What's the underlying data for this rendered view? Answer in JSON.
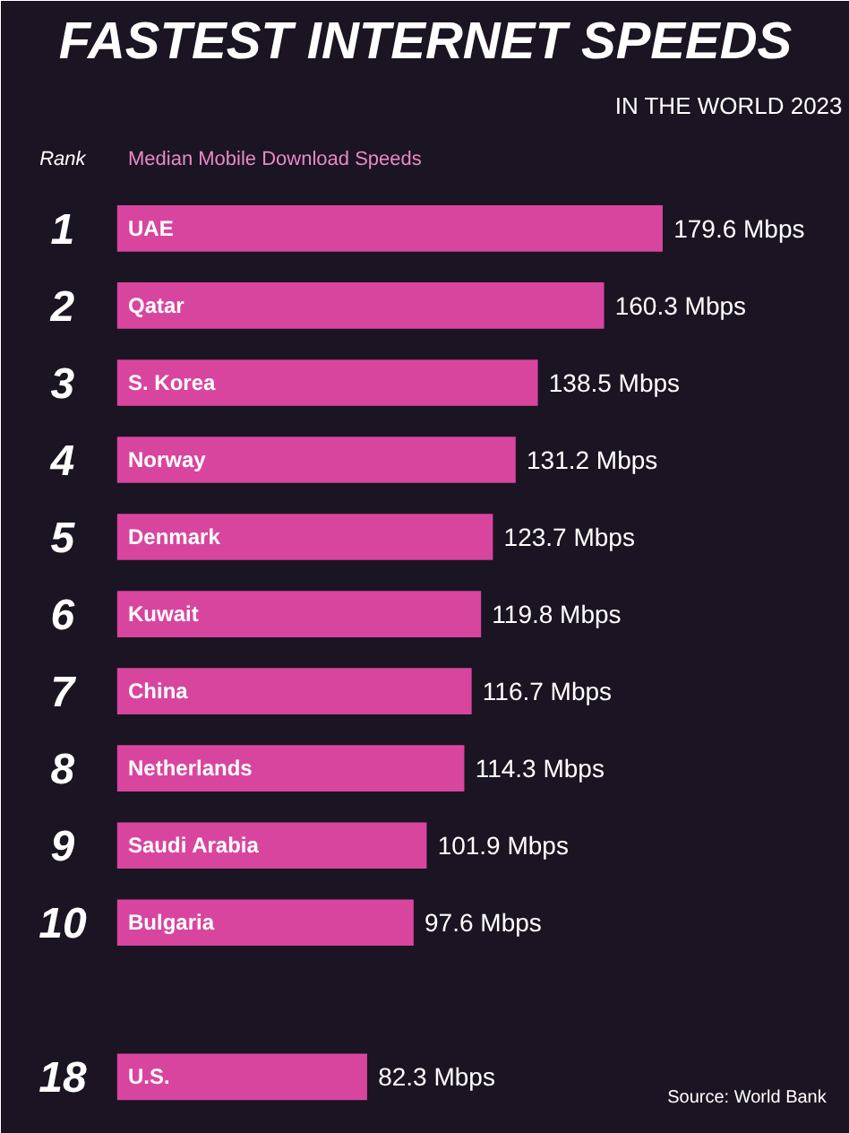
{
  "chart_data": {
    "type": "bar",
    "orientation": "horizontal",
    "title": "FASTEST INTERNET SPEEDS",
    "subtitle": "IN THE WORLD 2023",
    "xlabel": "Median Mobile Download Speeds",
    "ylabel": "Rank",
    "categories": [
      "UAE",
      "Qatar",
      "S. Korea",
      "Norway",
      "Denmark",
      "Kuwait",
      "China",
      "Netherlands",
      "Saudi Arabia",
      "Bulgaria",
      null,
      "U.S."
    ],
    "values": [
      179.6,
      160.3,
      138.5,
      131.2,
      123.7,
      119.8,
      116.7,
      114.3,
      101.9,
      97.6,
      null,
      82.3
    ],
    "value_labels": [
      "179.6 Mbps",
      "160.3 Mbps",
      "138.5 Mbps",
      "131.2 Mbps",
      "123.7 Mbps",
      "119.8 Mbps",
      "116.7 Mbps",
      "114.3 Mbps",
      "101.9 Mbps",
      "97.6 Mbps",
      null,
      "82.3 Mbps"
    ],
    "color": "#d8459f",
    "annotations": [
      "1",
      "2",
      "3",
      "4",
      "5",
      "6",
      "7",
      "8",
      "9",
      "10",
      "18",
      "Source: World Bank"
    ],
    "grid": false
  }
}
